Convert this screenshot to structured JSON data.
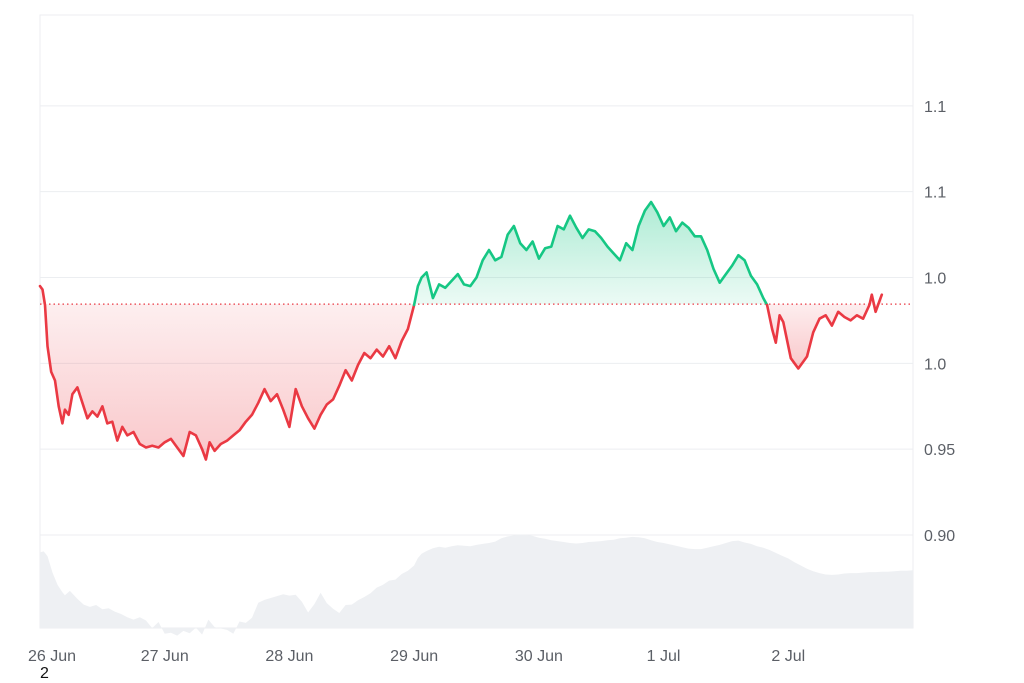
{
  "chart_data": {
    "type": "area",
    "baseline": 1.0345,
    "ylim": [
      0.9,
      1.2
    ],
    "y_ticks": [
      {
        "value": 1.15,
        "label": "1.1"
      },
      {
        "value": 1.1,
        "label": "1.1"
      },
      {
        "value": 1.05,
        "label": "1.0"
      },
      {
        "value": 1.0,
        "label": "1.0"
      },
      {
        "value": 0.95,
        "label": "0.95"
      },
      {
        "value": 0.9,
        "label": "0.90"
      }
    ],
    "x_ticks": [
      {
        "value": 0,
        "label": "26 Jun"
      },
      {
        "value": 1,
        "label": "27 Jun"
      },
      {
        "value": 2,
        "label": "28 Jun"
      },
      {
        "value": 3,
        "label": "29 Jun"
      },
      {
        "value": 4,
        "label": "30 Jun"
      },
      {
        "value": 5,
        "label": "1 Jul"
      },
      {
        "value": 6,
        "label": "2 Jul"
      }
    ],
    "xlim": [
      0,
      7.0
    ],
    "grid": "horizontal",
    "colors": {
      "above": "#16c784",
      "below": "#ea3943",
      "volume": "#eef0f3",
      "grid": "#eceef1",
      "baseline": "#ea3943"
    },
    "series": [
      {
        "points": [
          [
            0.0,
            1.173
          ],
          [
            0.03,
            1.175
          ],
          [
            0.06,
            1.165
          ],
          [
            0.1,
            1.13
          ],
          [
            0.14,
            1.104
          ],
          [
            0.18,
            1.088
          ],
          [
            0.2,
            1.082
          ],
          [
            0.24,
            1.091
          ],
          [
            0.3,
            1.074
          ],
          [
            0.35,
            1.062
          ],
          [
            0.4,
            1.057
          ],
          [
            0.45,
            1.061
          ],
          [
            0.5,
            1.052
          ],
          [
            0.55,
            1.054
          ],
          [
            0.6,
            1.047
          ],
          [
            0.65,
            1.042
          ],
          [
            0.7,
            1.035
          ],
          [
            0.75,
            1.03
          ],
          [
            0.8,
            1.035
          ],
          [
            0.85,
            1.028
          ],
          [
            0.9,
            1.012
          ],
          [
            0.95,
            1.025
          ],
          [
            1.0,
            1.0
          ],
          [
            1.05,
            1.002
          ],
          [
            1.1,
            0.996
          ],
          [
            1.15,
            1.006
          ],
          [
            1.2,
            1.001
          ],
          [
            1.25,
            1.013
          ],
          [
            1.3,
            0.998
          ],
          [
            1.35,
            1.03
          ],
          [
            1.4,
            1.014
          ],
          [
            1.45,
            1.011
          ],
          [
            1.5,
            1.008
          ],
          [
            1.55,
            1.0
          ],
          [
            1.6,
            1.026
          ],
          [
            1.65,
            1.023
          ],
          [
            1.7,
            1.034
          ],
          [
            1.75,
            1.066
          ],
          [
            1.8,
            1.072
          ],
          [
            1.85,
            1.076
          ],
          [
            1.9,
            1.08
          ],
          [
            1.95,
            1.084
          ],
          [
            2.0,
            1.081
          ],
          [
            2.05,
            1.083
          ],
          [
            2.1,
            1.068
          ],
          [
            2.15,
            1.045
          ],
          [
            2.2,
            1.063
          ],
          [
            2.25,
            1.087
          ],
          [
            2.3,
            1.065
          ],
          [
            2.35,
            1.053
          ],
          [
            2.4,
            1.044
          ],
          [
            2.45,
            1.061
          ],
          [
            2.5,
            1.062
          ],
          [
            2.55,
            1.071
          ],
          [
            2.6,
            1.078
          ],
          [
            2.65,
            1.086
          ],
          [
            2.7,
            1.098
          ],
          [
            2.75,
            1.104
          ],
          [
            2.8,
            1.113
          ],
          [
            2.85,
            1.115
          ],
          [
            2.9,
            1.127
          ],
          [
            2.95,
            1.134
          ],
          [
            3.0,
            1.145
          ],
          [
            3.03,
            1.161
          ],
          [
            3.06,
            1.17
          ],
          [
            3.1,
            1.176
          ],
          [
            3.15,
            1.182
          ],
          [
            3.2,
            1.185
          ],
          [
            3.25,
            1.183
          ],
          [
            3.3,
            1.186
          ],
          [
            3.35,
            1.188
          ],
          [
            3.4,
            1.187
          ],
          [
            3.45,
            1.186
          ],
          [
            3.5,
            1.189
          ],
          [
            3.55,
            1.191
          ],
          [
            3.6,
            1.193
          ],
          [
            3.65,
            1.196
          ],
          [
            3.7,
            1.203
          ],
          [
            3.75,
            1.207
          ],
          [
            3.8,
            1.209
          ],
          [
            3.85,
            1.211
          ],
          [
            3.9,
            1.21
          ],
          [
            3.95,
            1.208
          ],
          [
            4.0,
            1.204
          ],
          [
            4.05,
            1.202
          ],
          [
            4.1,
            1.199
          ],
          [
            4.15,
            1.197
          ],
          [
            4.2,
            1.195
          ],
          [
            4.25,
            1.193
          ],
          [
            4.3,
            1.192
          ],
          [
            4.35,
            1.193
          ],
          [
            4.4,
            1.195
          ],
          [
            4.45,
            1.196
          ],
          [
            4.5,
            1.197
          ],
          [
            4.55,
            1.199
          ],
          [
            4.6,
            1.2
          ],
          [
            4.65,
            1.203
          ],
          [
            4.7,
            1.204
          ],
          [
            4.75,
            1.206
          ],
          [
            4.8,
            1.205
          ],
          [
            4.85,
            1.203
          ],
          [
            4.9,
            1.199
          ],
          [
            4.95,
            1.195
          ],
          [
            5.0,
            1.193
          ],
          [
            5.05,
            1.19
          ],
          [
            5.1,
            1.187
          ],
          [
            5.15,
            1.184
          ],
          [
            5.2,
            1.181
          ],
          [
            5.25,
            1.18
          ],
          [
            5.3,
            1.18
          ],
          [
            5.35,
            1.183
          ],
          [
            5.4,
            1.186
          ],
          [
            5.45,
            1.189
          ],
          [
            5.5,
            1.193
          ],
          [
            5.55,
            1.197
          ],
          [
            5.6,
            1.198
          ],
          [
            5.65,
            1.194
          ],
          [
            5.7,
            1.191
          ],
          [
            5.75,
            1.186
          ],
          [
            5.8,
            1.183
          ],
          [
            5.85,
            1.178
          ],
          [
            5.9,
            1.172
          ],
          [
            5.95,
            1.166
          ],
          [
            6.0,
            1.16
          ],
          [
            6.05,
            1.152
          ],
          [
            6.1,
            1.145
          ],
          [
            6.15,
            1.138
          ],
          [
            6.2,
            1.133
          ],
          [
            6.25,
            1.129
          ],
          [
            6.3,
            1.126
          ],
          [
            6.35,
            1.125
          ],
          [
            6.4,
            1.126
          ],
          [
            6.45,
            1.128
          ],
          [
            6.5,
            1.129
          ],
          [
            6.55,
            1.129
          ],
          [
            6.6,
            1.13
          ],
          [
            6.65,
            1.131
          ],
          [
            6.7,
            1.131
          ],
          [
            6.75,
            1.132
          ],
          [
            6.8,
            1.132
          ],
          [
            6.85,
            1.133
          ],
          [
            6.9,
            1.134
          ],
          [
            6.95,
            1.134
          ],
          [
            7.0,
            1.135
          ]
        ]
      },
      {
        "name": "price",
        "points": [
          [
            0.0,
            1.045
          ],
          [
            0.02,
            1.043
          ],
          [
            0.04,
            1.034
          ],
          [
            0.06,
            1.01
          ],
          [
            0.09,
            0.995
          ],
          [
            0.12,
            0.99
          ],
          [
            0.15,
            0.975
          ],
          [
            0.18,
            0.965
          ],
          [
            0.2,
            0.973
          ],
          [
            0.23,
            0.97
          ],
          [
            0.26,
            0.982
          ],
          [
            0.3,
            0.986
          ],
          [
            0.34,
            0.977
          ],
          [
            0.38,
            0.968
          ],
          [
            0.42,
            0.972
          ],
          [
            0.46,
            0.969
          ],
          [
            0.5,
            0.975
          ],
          [
            0.54,
            0.965
          ],
          [
            0.58,
            0.966
          ],
          [
            0.62,
            0.955
          ],
          [
            0.66,
            0.963
          ],
          [
            0.7,
            0.958
          ],
          [
            0.75,
            0.96
          ],
          [
            0.8,
            0.953
          ],
          [
            0.85,
            0.951
          ],
          [
            0.9,
            0.952
          ],
          [
            0.95,
            0.951
          ],
          [
            1.0,
            0.954
          ],
          [
            1.05,
            0.956
          ],
          [
            1.1,
            0.951
          ],
          [
            1.15,
            0.946
          ],
          [
            1.2,
            0.96
          ],
          [
            1.25,
            0.958
          ],
          [
            1.3,
            0.95
          ],
          [
            1.33,
            0.944
          ],
          [
            1.36,
            0.954
          ],
          [
            1.4,
            0.949
          ],
          [
            1.45,
            0.953
          ],
          [
            1.5,
            0.955
          ],
          [
            1.55,
            0.958
          ],
          [
            1.6,
            0.961
          ],
          [
            1.65,
            0.966
          ],
          [
            1.7,
            0.97
          ],
          [
            1.75,
            0.977
          ],
          [
            1.8,
            0.985
          ],
          [
            1.85,
            0.978
          ],
          [
            1.9,
            0.982
          ],
          [
            1.95,
            0.973
          ],
          [
            2.0,
            0.963
          ],
          [
            2.05,
            0.985
          ],
          [
            2.1,
            0.975
          ],
          [
            2.15,
            0.968
          ],
          [
            2.2,
            0.962
          ],
          [
            2.25,
            0.97
          ],
          [
            2.3,
            0.976
          ],
          [
            2.35,
            0.979
          ],
          [
            2.4,
            0.987
          ],
          [
            2.45,
            0.996
          ],
          [
            2.5,
            0.99
          ],
          [
            2.55,
            0.999
          ],
          [
            2.6,
            1.006
          ],
          [
            2.65,
            1.003
          ],
          [
            2.7,
            1.008
          ],
          [
            2.75,
            1.004
          ],
          [
            2.8,
            1.01
          ],
          [
            2.85,
            1.003
          ],
          [
            2.9,
            1.013
          ],
          [
            2.95,
            1.02
          ],
          [
            3.0,
            1.034
          ]
        ]
      },
      {
        "name": "price",
        "points": [
          [
            3.0,
            1.034
          ],
          [
            3.03,
            1.045
          ],
          [
            3.06,
            1.05
          ],
          [
            3.1,
            1.053
          ],
          [
            3.15,
            1.038
          ],
          [
            3.2,
            1.046
          ],
          [
            3.25,
            1.044
          ],
          [
            3.3,
            1.048
          ],
          [
            3.35,
            1.052
          ],
          [
            3.4,
            1.046
          ],
          [
            3.45,
            1.045
          ],
          [
            3.5,
            1.05
          ],
          [
            3.55,
            1.06
          ],
          [
            3.6,
            1.066
          ],
          [
            3.65,
            1.06
          ],
          [
            3.7,
            1.062
          ],
          [
            3.75,
            1.075
          ],
          [
            3.8,
            1.08
          ],
          [
            3.85,
            1.07
          ],
          [
            3.9,
            1.066
          ],
          [
            3.95,
            1.071
          ],
          [
            4.0,
            1.061
          ],
          [
            4.05,
            1.067
          ],
          [
            4.1,
            1.068
          ],
          [
            4.15,
            1.08
          ],
          [
            4.2,
            1.078
          ],
          [
            4.25,
            1.086
          ],
          [
            4.3,
            1.079
          ],
          [
            4.35,
            1.073
          ],
          [
            4.4,
            1.078
          ],
          [
            4.45,
            1.077
          ],
          [
            4.5,
            1.073
          ],
          [
            4.55,
            1.068
          ],
          [
            4.6,
            1.064
          ],
          [
            4.65,
            1.06
          ],
          [
            4.7,
            1.07
          ],
          [
            4.75,
            1.066
          ],
          [
            4.8,
            1.08
          ],
          [
            4.85,
            1.089
          ],
          [
            4.9,
            1.094
          ],
          [
            4.95,
            1.088
          ],
          [
            5.0,
            1.08
          ],
          [
            5.05,
            1.085
          ],
          [
            5.1,
            1.077
          ],
          [
            5.15,
            1.082
          ],
          [
            5.2,
            1.079
          ],
          [
            5.25,
            1.074
          ],
          [
            5.3,
            1.074
          ],
          [
            5.35,
            1.066
          ],
          [
            5.4,
            1.055
          ],
          [
            5.45,
            1.047
          ],
          [
            5.5,
            1.052
          ],
          [
            5.55,
            1.057
          ],
          [
            5.6,
            1.063
          ],
          [
            5.65,
            1.06
          ],
          [
            5.7,
            1.051
          ],
          [
            5.75,
            1.046
          ],
          [
            5.8,
            1.038
          ],
          [
            5.83,
            1.034
          ]
        ]
      },
      {
        "name": "price",
        "points": [
          [
            5.83,
            1.034
          ],
          [
            5.87,
            1.02
          ],
          [
            5.9,
            1.012
          ],
          [
            5.93,
            1.028
          ],
          [
            5.96,
            1.024
          ],
          [
            6.0,
            1.01
          ],
          [
            6.02,
            1.003
          ],
          [
            6.05,
            1.0
          ],
          [
            6.08,
            0.997
          ],
          [
            6.12,
            1.001
          ],
          [
            6.15,
            1.004
          ],
          [
            6.2,
            1.018
          ],
          [
            6.25,
            1.026
          ],
          [
            6.3,
            1.028
          ],
          [
            6.35,
            1.022
          ],
          [
            6.4,
            1.03
          ],
          [
            6.45,
            1.027
          ],
          [
            6.5,
            1.025
          ],
          [
            6.55,
            1.028
          ],
          [
            6.6,
            1.026
          ],
          [
            6.65,
            1.034
          ],
          [
            6.67,
            1.04
          ],
          [
            6.7,
            1.03
          ],
          [
            6.73,
            1.036
          ],
          [
            6.75,
            1.04
          ]
        ]
      }
    ]
  },
  "footnote": "2"
}
